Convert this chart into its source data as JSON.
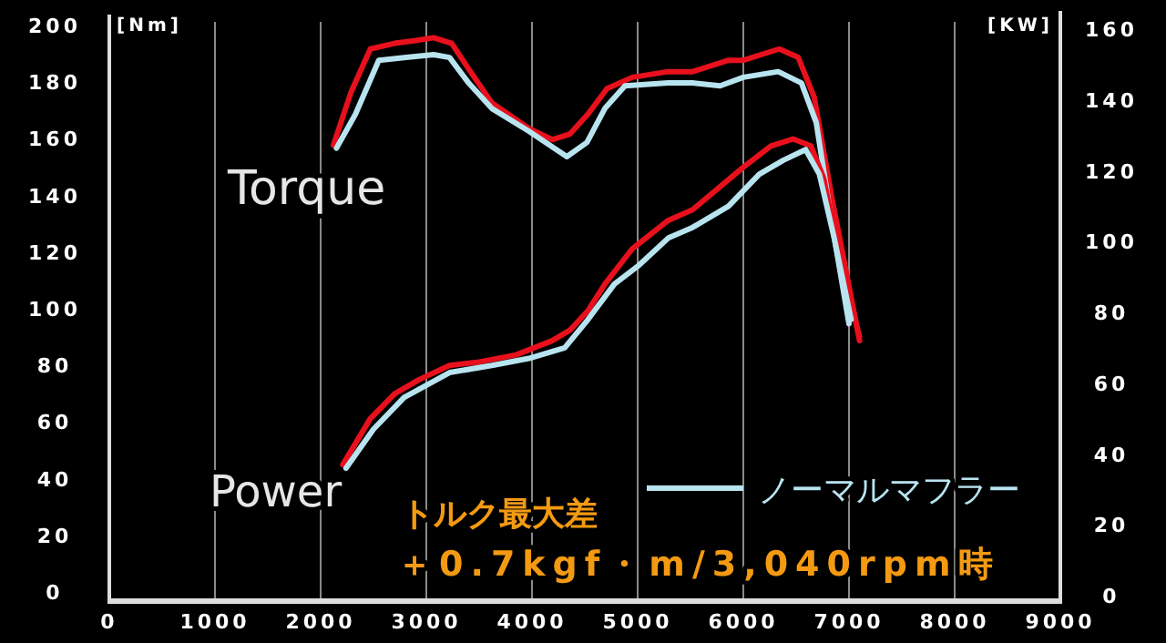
{
  "chart_data": {
    "type": "line",
    "ylabel": "[Nm]",
    "y2label": "[KW]",
    "xlim": [
      0,
      9000
    ],
    "xticks": [
      0,
      1000,
      2000,
      3000,
      4000,
      5000,
      6000,
      7000,
      8000,
      9000
    ],
    "ylim": [
      0,
      200
    ],
    "yticks": [
      0,
      20,
      40,
      60,
      80,
      100,
      120,
      140,
      160,
      180,
      200
    ],
    "y2lim": [
      0,
      160
    ],
    "y2ticks": [
      0,
      20,
      40,
      60,
      80,
      100,
      120,
      140,
      160
    ],
    "grid": "x",
    "legend": "bottom right",
    "annotations": [
      "Torque",
      "Power",
      "トルク最大差",
      "＋0.7kgf・m/3,040rpm時"
    ],
    "series": [
      {
        "color": "#e8101c",
        "x": [
          2120,
          2290,
          2470,
          2700,
          2900,
          3070,
          3240,
          3400,
          3620,
          3970,
          4190,
          4360,
          4530,
          4710,
          4950,
          5290,
          5520,
          5860,
          6000,
          6340,
          6520,
          6670,
          6840,
          7100
        ],
        "values": [
          159,
          178,
          193,
          195,
          196,
          197,
          195,
          186,
          174,
          165,
          161,
          163,
          170,
          179,
          183,
          185,
          185,
          189,
          189,
          193,
          190,
          176,
          140,
          90
        ]
      },
      {
        "name": "ノーマルマフラー",
        "color": "#b8e4f0",
        "x": [
          2150,
          2330,
          2550,
          2810,
          3070,
          3220,
          3400,
          3620,
          3970,
          4330,
          4520,
          4690,
          4880,
          5290,
          5520,
          5780,
          6000,
          6330,
          6550,
          6690,
          6840,
          7000
        ],
        "values": [
          158,
          170,
          189,
          190,
          191,
          190,
          181,
          172,
          164,
          155,
          160,
          172,
          180,
          181,
          181,
          180,
          183,
          185,
          181,
          167,
          131,
          96
        ]
      },
      {
        "color": "#e8101c",
        "axis": "y2",
        "x": [
          2210,
          2470,
          2700,
          2930,
          3220,
          3500,
          3850,
          4190,
          4360,
          4530,
          4690,
          4950,
          5290,
          5520,
          6000,
          6260,
          6470,
          6640,
          6760,
          6900,
          7100
        ],
        "values": [
          37,
          50,
          57,
          61,
          65,
          66,
          68,
          72,
          75,
          80.5,
          88,
          98,
          106,
          109,
          121,
          127,
          129,
          127,
          118,
          97,
          73
        ]
      },
      {
        "color": "#b8e4f0",
        "axis": "y2",
        "x": [
          2240,
          2500,
          2790,
          3220,
          3620,
          3970,
          4310,
          4530,
          4780,
          5000,
          5290,
          5520,
          5860,
          6150,
          6380,
          6590,
          6720,
          6860,
          7020
        ],
        "values": [
          36,
          47,
          56,
          63,
          65,
          67,
          70,
          78,
          88,
          93,
          101,
          104,
          110,
          119,
          123,
          126,
          119,
          101,
          78
        ]
      }
    ]
  }
}
